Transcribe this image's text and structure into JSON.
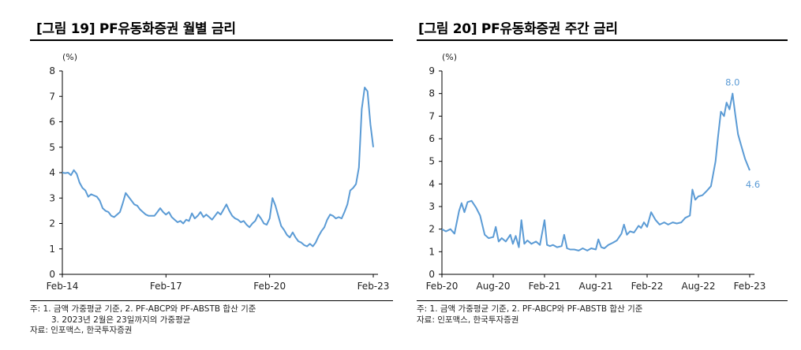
{
  "chart_data": [
    {
      "type": "line",
      "title": "[그림 19] PF유동화증권 월별 금리",
      "ylabel": "(%)",
      "xlabel": "",
      "ylim": [
        0,
        8
      ],
      "yticks": [
        0,
        1,
        2,
        3,
        4,
        5,
        6,
        7,
        8
      ],
      "xlim": [
        "2014-02",
        "2023-02"
      ],
      "xticks": [
        {
          "label": "Feb-14",
          "x": "2014-02"
        },
        {
          "label": "Feb-17",
          "x": "2017-02"
        },
        {
          "label": "Feb-20",
          "x": "2020-02"
        },
        {
          "label": "Feb-23",
          "x": "2023-02"
        }
      ],
      "grid": false,
      "legend": "none",
      "color": "#5b9bd5",
      "series": [
        {
          "points": [
            [
              "2014-02",
              4.0
            ],
            [
              "2014-03",
              3.98
            ],
            [
              "2014-04",
              4.0
            ],
            [
              "2014-05",
              3.9
            ],
            [
              "2014-06",
              4.1
            ],
            [
              "2014-07",
              3.95
            ],
            [
              "2014-08",
              3.6
            ],
            [
              "2014-09",
              3.4
            ],
            [
              "2014-10",
              3.3
            ],
            [
              "2014-11",
              3.05
            ],
            [
              "2014-12",
              3.15
            ],
            [
              "2015-01",
              3.1
            ],
            [
              "2015-02",
              3.05
            ],
            [
              "2015-03",
              2.9
            ],
            [
              "2015-04",
              2.6
            ],
            [
              "2015-05",
              2.5
            ],
            [
              "2015-06",
              2.45
            ],
            [
              "2015-07",
              2.3
            ],
            [
              "2015-08",
              2.25
            ],
            [
              "2015-09",
              2.35
            ],
            [
              "2015-10",
              2.45
            ],
            [
              "2015-11",
              2.8
            ],
            [
              "2015-12",
              3.2
            ],
            [
              "2016-01",
              3.05
            ],
            [
              "2016-02",
              2.9
            ],
            [
              "2016-03",
              2.75
            ],
            [
              "2016-04",
              2.7
            ],
            [
              "2016-05",
              2.55
            ],
            [
              "2016-06",
              2.45
            ],
            [
              "2016-07",
              2.35
            ],
            [
              "2016-08",
              2.3
            ],
            [
              "2016-09",
              2.3
            ],
            [
              "2016-10",
              2.3
            ],
            [
              "2016-11",
              2.45
            ],
            [
              "2016-12",
              2.6
            ],
            [
              "2017-01",
              2.45
            ],
            [
              "2017-02",
              2.35
            ],
            [
              "2017-03",
              2.45
            ],
            [
              "2017-04",
              2.25
            ],
            [
              "2017-05",
              2.15
            ],
            [
              "2017-06",
              2.05
            ],
            [
              "2017-07",
              2.1
            ],
            [
              "2017-08",
              2.0
            ],
            [
              "2017-09",
              2.15
            ],
            [
              "2017-10",
              2.1
            ],
            [
              "2017-11",
              2.4
            ],
            [
              "2017-12",
              2.2
            ],
            [
              "2018-01",
              2.3
            ],
            [
              "2018-02",
              2.45
            ],
            [
              "2018-03",
              2.25
            ],
            [
              "2018-04",
              2.35
            ],
            [
              "2018-05",
              2.25
            ],
            [
              "2018-06",
              2.15
            ],
            [
              "2018-07",
              2.3
            ],
            [
              "2018-08",
              2.45
            ],
            [
              "2018-09",
              2.35
            ],
            [
              "2018-10",
              2.55
            ],
            [
              "2018-11",
              2.75
            ],
            [
              "2018-12",
              2.5
            ],
            [
              "2019-01",
              2.3
            ],
            [
              "2019-02",
              2.2
            ],
            [
              "2019-03",
              2.15
            ],
            [
              "2019-04",
              2.05
            ],
            [
              "2019-05",
              2.1
            ],
            [
              "2019-06",
              1.95
            ],
            [
              "2019-07",
              1.85
            ],
            [
              "2019-08",
              2.0
            ],
            [
              "2019-09",
              2.1
            ],
            [
              "2019-10",
              2.35
            ],
            [
              "2019-11",
              2.2
            ],
            [
              "2019-12",
              2.0
            ],
            [
              "2020-01",
              1.95
            ],
            [
              "2020-02",
              2.2
            ],
            [
              "2020-03",
              3.0
            ],
            [
              "2020-04",
              2.7
            ],
            [
              "2020-05",
              2.3
            ],
            [
              "2020-06",
              1.9
            ],
            [
              "2020-07",
              1.75
            ],
            [
              "2020-08",
              1.55
            ],
            [
              "2020-09",
              1.45
            ],
            [
              "2020-10",
              1.65
            ],
            [
              "2020-11",
              1.45
            ],
            [
              "2020-12",
              1.3
            ],
            [
              "2021-01",
              1.25
            ],
            [
              "2021-02",
              1.15
            ],
            [
              "2021-03",
              1.1
            ],
            [
              "2021-04",
              1.2
            ],
            [
              "2021-05",
              1.1
            ],
            [
              "2021-06",
              1.25
            ],
            [
              "2021-07",
              1.5
            ],
            [
              "2021-08",
              1.7
            ],
            [
              "2021-09",
              1.85
            ],
            [
              "2021-10",
              2.15
            ],
            [
              "2021-11",
              2.35
            ],
            [
              "2021-12",
              2.3
            ],
            [
              "2022-01",
              2.2
            ],
            [
              "2022-02",
              2.25
            ],
            [
              "2022-03",
              2.2
            ],
            [
              "2022-04",
              2.45
            ],
            [
              "2022-05",
              2.75
            ],
            [
              "2022-06",
              3.3
            ],
            [
              "2022-07",
              3.4
            ],
            [
              "2022-08",
              3.55
            ],
            [
              "2022-09",
              4.2
            ],
            [
              "2022-10",
              6.5
            ],
            [
              "2022-11",
              7.35
            ],
            [
              "2022-12",
              7.2
            ],
            [
              "2023-01",
              5.9
            ],
            [
              "2023-02",
              5.0
            ]
          ]
        }
      ],
      "notes": [
        "주: 1. 금액 가중평균 기준, 2. PF-ABCP와 PF-ABSTB 합산 기준",
        "3. 2023년 2월은 23일까지의 가중평균",
        "자료: 인포맥스, 한국투자증권"
      ]
    },
    {
      "type": "line",
      "title": "[그림 20] PF유동화증권 주간 금리",
      "ylabel": "(%)",
      "xlabel": "",
      "ylim": [
        0,
        9
      ],
      "yticks": [
        0,
        1,
        2,
        3,
        4,
        5,
        6,
        7,
        8,
        9
      ],
      "xlim": [
        "2020-02",
        "2023-02"
      ],
      "xticks": [
        {
          "label": "Feb-20",
          "x": "2020-02"
        },
        {
          "label": "Aug-20",
          "x": "2020-08"
        },
        {
          "label": "Feb-21",
          "x": "2021-02"
        },
        {
          "label": "Aug-21",
          "x": "2021-08"
        },
        {
          "label": "Feb-22",
          "x": "2022-02"
        },
        {
          "label": "Aug-22",
          "x": "2022-08"
        },
        {
          "label": "Feb-23",
          "x": "2023-02"
        }
      ],
      "grid": false,
      "legend": "none",
      "color": "#5b9bd5",
      "annotations": [
        {
          "text": "8.0",
          "x": "2022-12",
          "y": 8.0
        },
        {
          "text": "4.6",
          "x": "2023-02",
          "y": 4.6
        }
      ],
      "series": [
        {
          "points": [
            [
              "2020-02",
              2.0
            ],
            [
              "2020-02-15",
              1.9
            ],
            [
              "2020-03",
              2.0
            ],
            [
              "2020-03-15",
              1.8
            ],
            [
              "2020-04",
              2.8
            ],
            [
              "2020-04-10",
              3.15
            ],
            [
              "2020-04-20",
              2.75
            ],
            [
              "2020-05",
              3.2
            ],
            [
              "2020-05-15",
              3.25
            ],
            [
              "2020-06",
              2.95
            ],
            [
              "2020-06-15",
              2.6
            ],
            [
              "2020-07",
              1.75
            ],
            [
              "2020-07-15",
              1.6
            ],
            [
              "2020-08",
              1.65
            ],
            [
              "2020-08-10",
              2.1
            ],
            [
              "2020-08-20",
              1.45
            ],
            [
              "2020-09",
              1.6
            ],
            [
              "2020-09-15",
              1.45
            ],
            [
              "2020-10",
              1.75
            ],
            [
              "2020-10-10",
              1.35
            ],
            [
              "2020-10-20",
              1.7
            ],
            [
              "2020-11",
              1.2
            ],
            [
              "2020-11-10",
              2.4
            ],
            [
              "2020-11-20",
              1.35
            ],
            [
              "2020-12",
              1.5
            ],
            [
              "2020-12-15",
              1.35
            ],
            [
              "2021-01",
              1.45
            ],
            [
              "2021-01-15",
              1.3
            ],
            [
              "2021-02",
              2.4
            ],
            [
              "2021-02-10",
              1.3
            ],
            [
              "2021-02-20",
              1.25
            ],
            [
              "2021-03",
              1.3
            ],
            [
              "2021-03-15",
              1.2
            ],
            [
              "2021-04",
              1.25
            ],
            [
              "2021-04-10",
              1.75
            ],
            [
              "2021-04-20",
              1.15
            ],
            [
              "2021-05",
              1.1
            ],
            [
              "2021-05-15",
              1.1
            ],
            [
              "2021-06",
              1.05
            ],
            [
              "2021-06-15",
              1.15
            ],
            [
              "2021-07",
              1.05
            ],
            [
              "2021-07-15",
              1.15
            ],
            [
              "2021-08",
              1.1
            ],
            [
              "2021-08-10",
              1.55
            ],
            [
              "2021-08-20",
              1.2
            ],
            [
              "2021-09",
              1.15
            ],
            [
              "2021-09-15",
              1.3
            ],
            [
              "2021-10",
              1.4
            ],
            [
              "2021-10-15",
              1.5
            ],
            [
              "2021-11",
              1.8
            ],
            [
              "2021-11-10",
              2.2
            ],
            [
              "2021-11-20",
              1.75
            ],
            [
              "2021-12",
              1.9
            ],
            [
              "2021-12-15",
              1.85
            ],
            [
              "2022-01",
              2.15
            ],
            [
              "2022-01-10",
              2.05
            ],
            [
              "2022-01-20",
              2.3
            ],
            [
              "2022-02",
              2.1
            ],
            [
              "2022-02-15",
              2.75
            ],
            [
              "2022-03",
              2.4
            ],
            [
              "2022-03-15",
              2.2
            ],
            [
              "2022-04",
              2.3
            ],
            [
              "2022-04-15",
              2.2
            ],
            [
              "2022-05",
              2.3
            ],
            [
              "2022-05-15",
              2.25
            ],
            [
              "2022-06",
              2.3
            ],
            [
              "2022-06-15",
              2.5
            ],
            [
              "2022-07",
              2.6
            ],
            [
              "2022-07-10",
              3.75
            ],
            [
              "2022-07-20",
              3.3
            ],
            [
              "2022-08",
              3.45
            ],
            [
              "2022-08-15",
              3.5
            ],
            [
              "2022-09",
              3.7
            ],
            [
              "2022-09-15",
              3.9
            ],
            [
              "2022-10",
              5.0
            ],
            [
              "2022-10-10",
              6.1
            ],
            [
              "2022-10-20",
              7.2
            ],
            [
              "2022-11",
              7.0
            ],
            [
              "2022-11-10",
              7.6
            ],
            [
              "2022-11-20",
              7.3
            ],
            [
              "2022-12",
              8.0
            ],
            [
              "2022-12-10",
              7.1
            ],
            [
              "2022-12-20",
              6.2
            ],
            [
              "2023-01",
              5.7
            ],
            [
              "2023-01-15",
              5.1
            ],
            [
              "2023-02",
              4.6
            ]
          ]
        }
      ],
      "notes": [
        "주: 1. 금액 가중평균 기준, 2. PF-ABCP와 PF-ABSTB 합산 기준",
        "자료: 인포맥스, 한국투자증권"
      ]
    }
  ]
}
